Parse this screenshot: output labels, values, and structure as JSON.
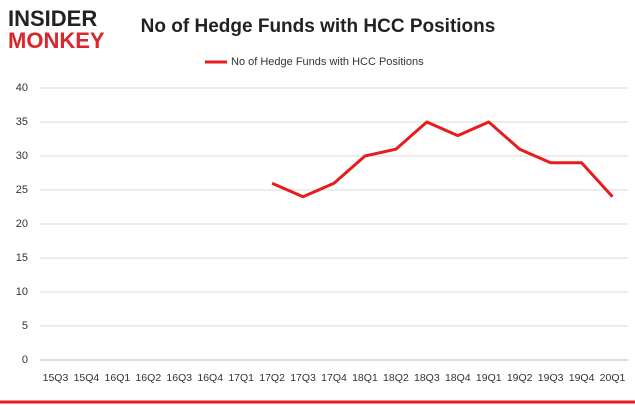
{
  "logo": {
    "line1": "INSIDER",
    "line2": "MONKEY"
  },
  "chart_data": {
    "type": "line",
    "title": "No of Hedge Funds with HCC Positions",
    "categories": [
      "15Q3",
      "15Q4",
      "16Q1",
      "16Q2",
      "16Q3",
      "16Q4",
      "17Q1",
      "17Q2",
      "17Q3",
      "17Q4",
      "18Q1",
      "18Q2",
      "18Q3",
      "18Q4",
      "19Q1",
      "19Q2",
      "19Q3",
      "19Q4",
      "20Q1"
    ],
    "series": [
      {
        "name": "No of Hedge Funds with HCC Positions",
        "color": "#e81c1c",
        "values": [
          null,
          null,
          null,
          null,
          null,
          null,
          null,
          26,
          24,
          26,
          30,
          31,
          35,
          33,
          35,
          31,
          29,
          29,
          24
        ]
      }
    ],
    "ylim": [
      0,
      40
    ],
    "yticks": [
      0,
      5,
      10,
      15,
      20,
      25,
      30,
      35,
      40
    ],
    "grid": true,
    "legend": "top"
  }
}
